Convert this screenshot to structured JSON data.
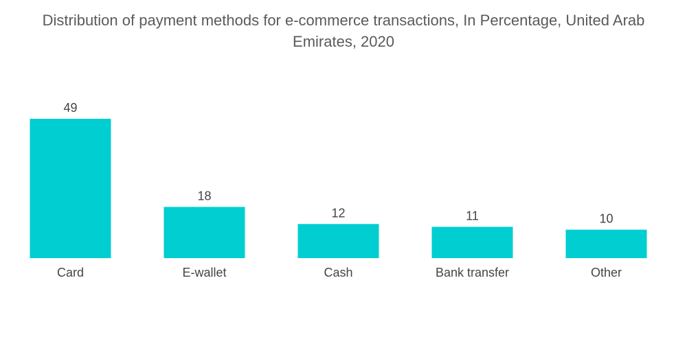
{
  "title_line1": "Distribution of payment methods for e-commerce transactions, In Percentage, United Arab",
  "title_line2": "Emirates, 2020",
  "colors": {
    "bar": "#00CED1",
    "text": "#444444",
    "title": "#5a5a5a"
  },
  "chart_data": {
    "type": "bar",
    "title": "Distribution of payment methods for e-commerce transactions, In Percentage, United Arab Emirates, 2020",
    "categories": [
      "Card",
      "E-wallet",
      "Cash",
      "Bank transfer",
      "Other"
    ],
    "values": [
      49,
      18,
      12,
      11,
      10
    ],
    "xlabel": "",
    "ylabel": "",
    "ylim": [
      0,
      49
    ],
    "grid": false,
    "data_labels": true
  }
}
